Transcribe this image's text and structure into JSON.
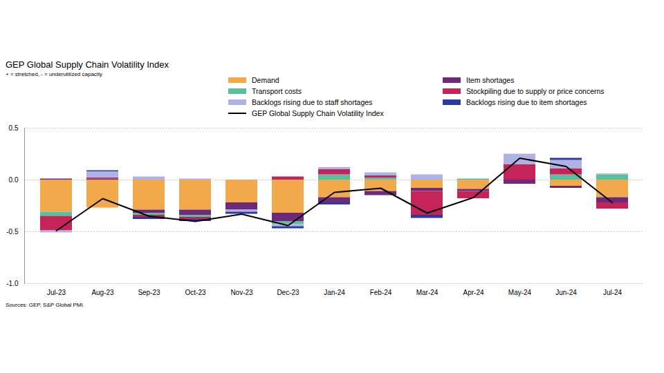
{
  "chart_data": {
    "type": "bar",
    "title": "GEP Global Supply Chain Volatility Index",
    "subtitle": "+ = stretched, - = underutilized capacity",
    "caption": "Sources: GEP, S&P Global PMI.",
    "stacked": true,
    "grid": true,
    "categories": [
      "Jul-23",
      "Aug-23",
      "Sep-23",
      "Oct-23",
      "Nov-23",
      "Dec-23",
      "Jan-24",
      "Feb-24",
      "Mar-24",
      "Apr-24",
      "May-24",
      "Jun-24",
      "Jul-24"
    ],
    "ylim": [
      -1.0,
      0.5
    ],
    "yticks": [
      0.5,
      {
        "value": 0,
        "label": "0.0"
      },
      -0.5,
      {
        "value": -1,
        "label": "-1.0"
      }
    ],
    "series": [
      {
        "name": "Demand",
        "type": "bar",
        "color": "#F2A94B",
        "values": [
          -0.31,
          -0.27,
          -0.29,
          -0.29,
          -0.22,
          -0.32,
          -0.17,
          -0.11,
          -0.08,
          -0.09,
          0,
          -0.06,
          -0.17
        ]
      },
      {
        "name": "Item shortages",
        "type": "bar",
        "color": "#6E2A7A",
        "values": [
          0.01,
          0.01,
          -0.03,
          -0.05,
          -0.07,
          -0.08,
          -0.05,
          -0.04,
          -0.03,
          -0.02,
          -0.04,
          -0.02,
          -0.05
        ]
      },
      {
        "name": "Transport costs",
        "type": "bar",
        "color": "#5BBF9E",
        "values": [
          -0.04,
          0,
          -0.02,
          -0.02,
          0,
          -0.03,
          0.05,
          0.02,
          0,
          0.01,
          0,
          0.05,
          0.05
        ]
      },
      {
        "name": "Stockpiling due to supply or price concerns",
        "type": "bar",
        "color": "#C4245A",
        "values": [
          -0.14,
          0.01,
          -0.02,
          -0.02,
          0,
          0.03,
          0.05,
          0.02,
          -0.23,
          -0.07,
          0.15,
          0.06,
          -0.06
        ]
      },
      {
        "name": "Backlogs rising due to staff shortages",
        "type": "bar",
        "color": "#AEB3E3",
        "values": [
          -0.02,
          0.06,
          0.03,
          0.01,
          -0.02,
          -0.02,
          0.02,
          0.03,
          0.05,
          0,
          0.1,
          0.08,
          0.01
        ]
      },
      {
        "name": "Backlogs rising due to item shortages",
        "type": "bar",
        "color": "#2B3A9E",
        "values": [
          0,
          0.01,
          -0.02,
          -0.02,
          -0.02,
          -0.02,
          -0.02,
          0,
          -0.03,
          0,
          0,
          0.02,
          0
        ]
      },
      {
        "name": "GEP Global Supply Chain Volatility Index",
        "type": "line",
        "color": "#000000",
        "values": [
          -0.49,
          -0.18,
          -0.35,
          -0.4,
          -0.33,
          -0.44,
          -0.12,
          -0.08,
          -0.32,
          -0.17,
          0.21,
          0.13,
          -0.22
        ]
      }
    ]
  }
}
